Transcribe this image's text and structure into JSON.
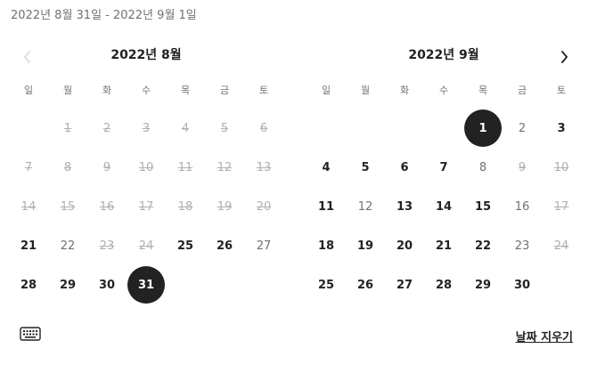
{
  "range_label": "2022년 8월 31일 - 2022년 9월 1일",
  "weekdays": [
    "일",
    "월",
    "화",
    "수",
    "목",
    "금",
    "토"
  ],
  "months": [
    {
      "title": "2022년 8월",
      "days": [
        {
          "n": "",
          "s": "empty"
        },
        {
          "n": "1",
          "s": "blocked"
        },
        {
          "n": "2",
          "s": "blocked"
        },
        {
          "n": "3",
          "s": "blocked"
        },
        {
          "n": "4",
          "s": "blocked"
        },
        {
          "n": "5",
          "s": "blocked"
        },
        {
          "n": "6",
          "s": "blocked"
        },
        {
          "n": "7",
          "s": "blocked"
        },
        {
          "n": "8",
          "s": "blocked"
        },
        {
          "n": "9",
          "s": "blocked"
        },
        {
          "n": "10",
          "s": "blocked"
        },
        {
          "n": "11",
          "s": "blocked"
        },
        {
          "n": "12",
          "s": "blocked"
        },
        {
          "n": "13",
          "s": "blocked"
        },
        {
          "n": "14",
          "s": "blocked"
        },
        {
          "n": "15",
          "s": "blocked"
        },
        {
          "n": "16",
          "s": "blocked"
        },
        {
          "n": "17",
          "s": "blocked"
        },
        {
          "n": "18",
          "s": "blocked"
        },
        {
          "n": "19",
          "s": "blocked"
        },
        {
          "n": "20",
          "s": "blocked"
        },
        {
          "n": "21",
          "s": "avail"
        },
        {
          "n": "22",
          "s": "soft"
        },
        {
          "n": "23",
          "s": "blocked"
        },
        {
          "n": "24",
          "s": "blocked"
        },
        {
          "n": "25",
          "s": "avail"
        },
        {
          "n": "26",
          "s": "avail"
        },
        {
          "n": "27",
          "s": "soft"
        },
        {
          "n": "28",
          "s": "avail"
        },
        {
          "n": "29",
          "s": "avail"
        },
        {
          "n": "30",
          "s": "avail"
        },
        {
          "n": "31",
          "s": "selected"
        }
      ]
    },
    {
      "title": "2022년 9월",
      "days": [
        {
          "n": "",
          "s": "empty"
        },
        {
          "n": "",
          "s": "empty"
        },
        {
          "n": "",
          "s": "empty"
        },
        {
          "n": "",
          "s": "empty"
        },
        {
          "n": "1",
          "s": "selected"
        },
        {
          "n": "2",
          "s": "soft"
        },
        {
          "n": "3",
          "s": "avail"
        },
        {
          "n": "4",
          "s": "avail"
        },
        {
          "n": "5",
          "s": "avail"
        },
        {
          "n": "6",
          "s": "avail"
        },
        {
          "n": "7",
          "s": "avail"
        },
        {
          "n": "8",
          "s": "soft"
        },
        {
          "n": "9",
          "s": "blocked"
        },
        {
          "n": "10",
          "s": "blocked"
        },
        {
          "n": "11",
          "s": "avail"
        },
        {
          "n": "12",
          "s": "soft"
        },
        {
          "n": "13",
          "s": "avail"
        },
        {
          "n": "14",
          "s": "avail"
        },
        {
          "n": "15",
          "s": "avail"
        },
        {
          "n": "16",
          "s": "soft"
        },
        {
          "n": "17",
          "s": "blocked"
        },
        {
          "n": "18",
          "s": "avail"
        },
        {
          "n": "19",
          "s": "avail"
        },
        {
          "n": "20",
          "s": "avail"
        },
        {
          "n": "21",
          "s": "avail"
        },
        {
          "n": "22",
          "s": "avail"
        },
        {
          "n": "23",
          "s": "soft"
        },
        {
          "n": "24",
          "s": "blocked"
        },
        {
          "n": "25",
          "s": "avail"
        },
        {
          "n": "26",
          "s": "avail"
        },
        {
          "n": "27",
          "s": "avail"
        },
        {
          "n": "28",
          "s": "avail"
        },
        {
          "n": "29",
          "s": "avail"
        },
        {
          "n": "30",
          "s": "avail"
        }
      ]
    }
  ],
  "nav": {
    "prev_icon": "chevron-left-icon",
    "next_icon": "chevron-right-icon",
    "prev_disabled": true
  },
  "footer": {
    "keyboard_icon": "keyboard-icon",
    "clear_label": "날짜 지우기"
  },
  "colors": {
    "text": "#222222",
    "muted": "#717171",
    "blocked": "#b0b0b0",
    "selected_bg": "#222222",
    "selected_text": "#ffffff",
    "background": "#ffffff"
  }
}
